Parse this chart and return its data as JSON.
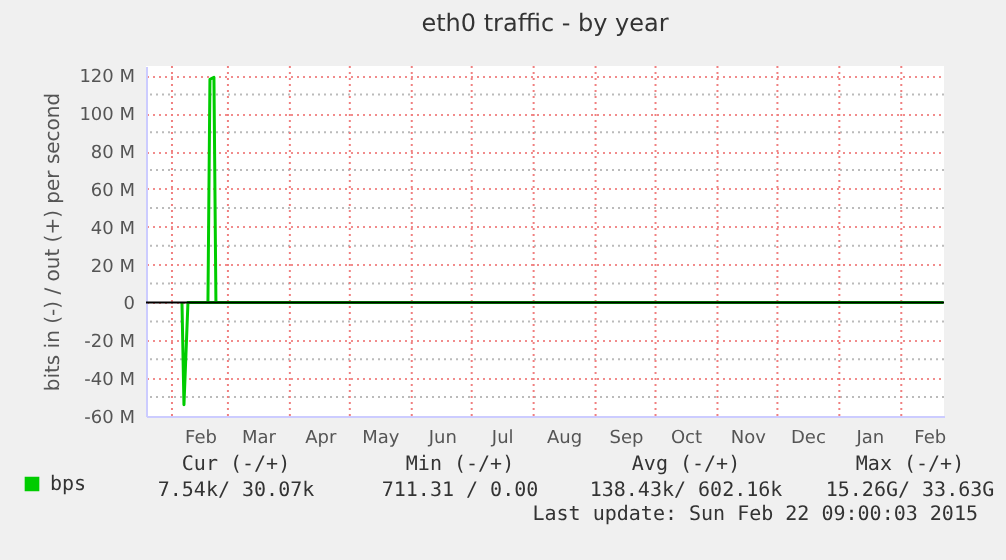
{
  "chart_data": {
    "type": "line",
    "title": "eth0 traffic - by year",
    "ylabel": "bits in (-) / out (+) per second",
    "xlim": [
      "2014-01-19",
      "2015-02-22T09:00"
    ],
    "ylim": [
      -60,
      125
    ],
    "xticks": [
      {
        "value": "2014-02-15",
        "label": "Feb"
      },
      {
        "value": "2014-03-16",
        "label": "Mar"
      },
      {
        "value": "2014-04-16",
        "label": "Apr"
      },
      {
        "value": "2014-05-16",
        "label": "May"
      },
      {
        "value": "2014-06-16",
        "label": "Jun"
      },
      {
        "value": "2014-07-16",
        "label": "Jul"
      },
      {
        "value": "2014-08-16",
        "label": "Aug"
      },
      {
        "value": "2014-09-16",
        "label": "Sep"
      },
      {
        "value": "2014-10-16",
        "label": "Oct"
      },
      {
        "value": "2014-11-16",
        "label": "Nov"
      },
      {
        "value": "2014-12-16",
        "label": "Dec"
      },
      {
        "value": "2015-01-16",
        "label": "Jan"
      },
      {
        "value": "2015-02-15",
        "label": "Feb"
      },
      {
        "value": "2014-02-01",
        "label": null
      },
      {
        "value": "2014-03-01",
        "label": null
      },
      {
        "value": "2014-04-01",
        "label": null
      },
      {
        "value": "2014-05-01",
        "label": null
      },
      {
        "value": "2014-06-01",
        "label": null
      },
      {
        "value": "2014-07-01",
        "label": null
      },
      {
        "value": "2014-08-01",
        "label": null
      },
      {
        "value": "2014-09-01",
        "label": null
      },
      {
        "value": "2014-10-01",
        "label": null
      },
      {
        "value": "2014-11-01",
        "label": null
      },
      {
        "value": "2014-12-01",
        "label": null
      },
      {
        "value": "2015-01-01",
        "label": null
      },
      {
        "value": "2015-02-01",
        "label": null
      }
    ],
    "yticks": [
      {
        "value": -60,
        "label": "-60 M"
      },
      {
        "value": -40,
        "label": "-40 M"
      },
      {
        "value": -20,
        "label": "-20 M"
      },
      0,
      {
        "value": 20,
        "label": "20 M"
      },
      {
        "value": 40,
        "label": "40 M"
      },
      {
        "value": 60,
        "label": "60 M"
      },
      {
        "value": 80,
        "label": "80 M"
      },
      {
        "value": 100,
        "label": "100 M"
      },
      {
        "value": 120,
        "label": "120 M"
      },
      {
        "value": -50,
        "label": null
      },
      {
        "value": -30,
        "label": null
      },
      {
        "value": -10,
        "label": null
      },
      {
        "value": 10,
        "label": null
      },
      {
        "value": 30,
        "label": null
      },
      {
        "value": 50,
        "label": null
      },
      {
        "value": 70,
        "label": null
      },
      {
        "value": 90,
        "label": null
      },
      {
        "value": 110,
        "label": null
      }
    ],
    "grid": true,
    "legend": "bottom left",
    "ref_lines": [
      {
        "axis": "y",
        "value": 0,
        "color": "#000000"
      }
    ],
    "series": [
      {
        "name": "bps",
        "color": "#00cc00",
        "x": [
          "2014-02-06",
          "2014-02-07",
          "2014-02-09",
          "2014-06-01",
          "2015-02-22"
        ],
        "values": [
          0,
          -54,
          0,
          0,
          0
        ]
      },
      {
        "color": "#00cc00",
        "x": [
          "2014-02-19",
          "2014-02-20",
          "2014-02-22",
          "2014-02-23",
          "2015-02-22"
        ],
        "values": [
          0,
          118,
          119,
          0,
          0
        ]
      }
    ],
    "annotations": [
      "Cur (-/+)",
      "Min (-/+)",
      "Avg (-/+)",
      "Max (-/+)",
      "7.54k/  30.07k",
      "711.31 /   0.00",
      "138.43k/ 602.16k",
      "15.26G/  33.63G",
      "Last update: Sun Feb 22 09:00:03 2015"
    ]
  }
}
